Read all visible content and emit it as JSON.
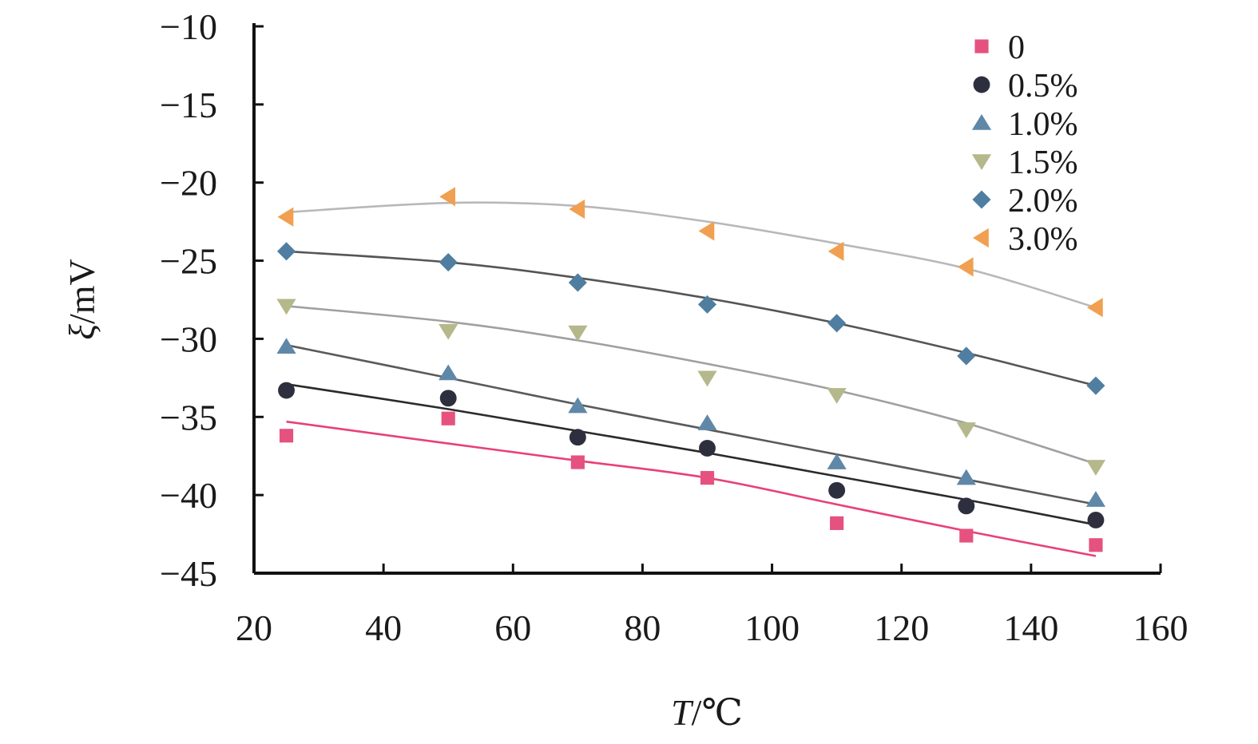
{
  "chart_data": {
    "type": "scatter",
    "title": "",
    "xlabel": {
      "var": "T",
      "unit": "/℃"
    },
    "ylabel": {
      "var": "ξ",
      "unit": "/mV"
    },
    "xlim": [
      20,
      160
    ],
    "ylim": [
      -45,
      -10
    ],
    "xticks": [
      20,
      40,
      60,
      80,
      100,
      120,
      140,
      160
    ],
    "yticks": [
      -10,
      -15,
      -20,
      -25,
      -30,
      -35,
      -40,
      -45
    ],
    "grid": false,
    "legend_position": "top-right",
    "x": [
      25,
      50,
      70,
      90,
      110,
      130,
      150
    ],
    "series": [
      {
        "name": "0",
        "marker": "square",
        "color": "#e5527f",
        "line_color": "#e8407a",
        "values": [
          -36.2,
          -35.1,
          -37.9,
          -38.9,
          -41.8,
          -42.6,
          -43.2
        ],
        "fit": [
          -35.3,
          -36.7,
          -37.8,
          -38.9,
          -40.6,
          -42.3,
          -43.9
        ]
      },
      {
        "name": "0.5%",
        "marker": "circle",
        "color": "#2e2f3e",
        "line_color": "#2b2b2b",
        "values": [
          -33.3,
          -33.8,
          -36.3,
          -37.0,
          -39.7,
          -40.7,
          -41.6
        ],
        "fit": [
          -32.9,
          -34.5,
          -35.9,
          -37.3,
          -38.8,
          -40.3,
          -41.9
        ]
      },
      {
        "name": "1.0%",
        "marker": "triangle-up",
        "color": "#5f88a8",
        "line_color": "#5a5a5a",
        "values": [
          -30.5,
          -32.2,
          -34.3,
          -35.4,
          -37.9,
          -38.9,
          -40.3
        ],
        "fit": [
          -30.4,
          -32.5,
          -34.2,
          -35.8,
          -37.4,
          -39.0,
          -40.6
        ]
      },
      {
        "name": "1.5%",
        "marker": "triangle-down",
        "color": "#b5b88a",
        "line_color": "#a0a0a0",
        "values": [
          -27.9,
          -29.5,
          -29.6,
          -32.5,
          -33.6,
          -35.8,
          -38.2
        ],
        "fit": [
          -27.9,
          -28.9,
          -30.1,
          -31.6,
          -33.3,
          -35.4,
          -38.0
        ]
      },
      {
        "name": "2.0%",
        "marker": "diamond",
        "color": "#4f7ea0",
        "line_color": "#555555",
        "values": [
          -24.4,
          -25.1,
          -26.4,
          -27.8,
          -29.0,
          -31.1,
          -33.0
        ],
        "fit": [
          -24.4,
          -25.1,
          -26.1,
          -27.4,
          -29.0,
          -30.9,
          -33.0
        ]
      },
      {
        "name": "3.0%",
        "marker": "triangle-left",
        "color": "#f0a050",
        "line_color": "#b8b8b8",
        "values": [
          -22.2,
          -20.9,
          -21.7,
          -23.1,
          -24.4,
          -25.4,
          -28.0
        ],
        "fit": [
          -21.9,
          -21.3,
          -21.5,
          -22.5,
          -23.9,
          -25.5,
          -28.0
        ]
      }
    ]
  }
}
